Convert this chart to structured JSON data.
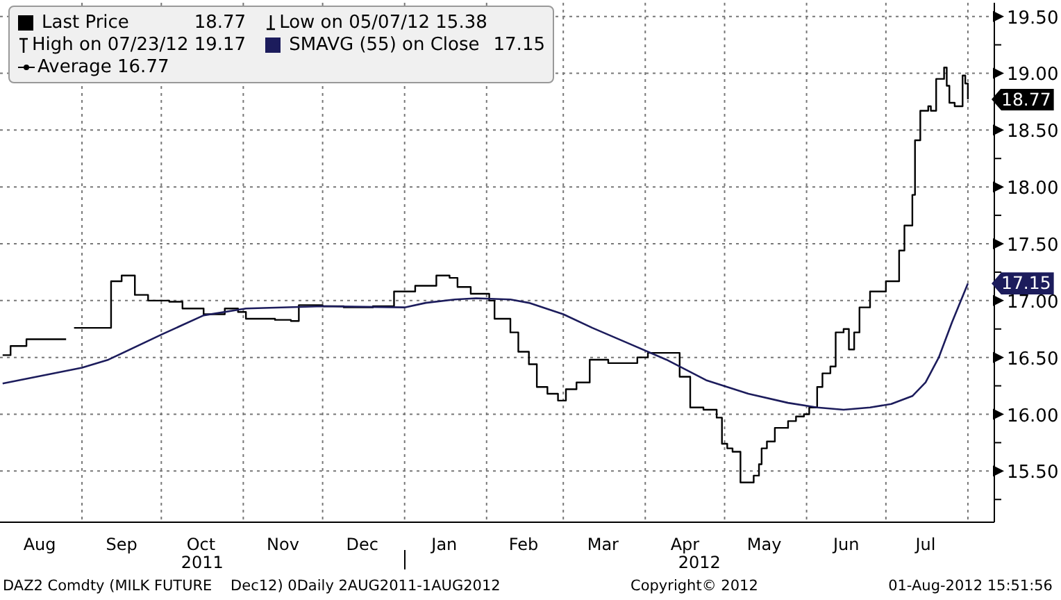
{
  "chart_data": {
    "type": "line",
    "series": [
      {
        "name": "Last Price",
        "type": "step",
        "color": "#000000",
        "x": [
          "2011-08-02",
          "2011-08-05",
          "2011-08-11",
          "2011-08-18",
          "2011-08-26",
          "2011-08-27",
          "2011-08-29",
          "2011-09-07",
          "2011-09-12",
          "2011-09-16",
          "2011-09-21",
          "2011-09-26",
          "2011-10-04",
          "2011-10-09",
          "2011-10-17",
          "2011-10-25",
          "2011-10-30",
          "2011-11-02",
          "2011-11-13",
          "2011-11-19",
          "2011-11-22",
          "2011-12-01",
          "2011-12-09",
          "2011-12-20",
          "2011-12-28",
          "2012-01-05",
          "2012-01-13",
          "2012-01-18",
          "2012-01-21",
          "2012-01-26",
          "2012-02-02",
          "2012-02-04",
          "2012-02-08",
          "2012-02-10",
          "2012-02-13",
          "2012-02-17",
          "2012-02-20",
          "2012-02-24",
          "2012-02-28",
          "2012-03-02",
          "2012-03-06",
          "2012-03-11",
          "2012-03-18",
          "2012-03-23",
          "2012-03-29",
          "2012-04-02",
          "2012-04-14",
          "2012-04-18",
          "2012-04-23",
          "2012-04-28",
          "2012-04-30",
          "2012-05-02",
          "2012-05-04",
          "2012-05-07",
          "2012-05-10",
          "2012-05-12",
          "2012-05-14",
          "2012-05-15",
          "2012-05-17",
          "2012-05-20",
          "2012-05-25",
          "2012-05-28",
          "2012-05-31",
          "2012-06-02",
          "2012-06-05",
          "2012-06-07",
          "2012-06-10",
          "2012-06-12",
          "2012-06-15",
          "2012-06-17",
          "2012-06-19",
          "2012-06-21",
          "2012-06-25",
          "2012-07-01",
          "2012-07-03",
          "2012-07-06",
          "2012-07-08",
          "2012-07-11",
          "2012-07-12",
          "2012-07-14",
          "2012-07-17",
          "2012-07-18",
          "2012-07-20",
          "2012-07-23",
          "2012-07-24",
          "2012-07-25",
          "2012-07-27",
          "2012-07-30",
          "2012-07-31",
          "2012-08-01"
        ],
        "values": [
          16.52,
          16.6,
          16.66,
          16.66,
          16.66,
          null,
          16.76,
          16.76,
          17.17,
          17.22,
          17.05,
          17.0,
          16.99,
          16.93,
          16.88,
          16.93,
          16.9,
          16.84,
          16.83,
          16.82,
          16.96,
          16.95,
          16.94,
          16.95,
          17.08,
          17.13,
          17.22,
          17.2,
          17.12,
          17.06,
          17.0,
          16.84,
          16.84,
          16.72,
          16.55,
          16.44,
          16.24,
          16.18,
          16.12,
          16.22,
          16.28,
          16.48,
          16.45,
          16.45,
          16.5,
          16.54,
          16.33,
          16.06,
          16.04,
          15.97,
          15.74,
          15.7,
          15.67,
          15.4,
          15.4,
          15.46,
          15.56,
          15.7,
          15.76,
          15.88,
          15.94,
          15.98,
          16.0,
          16.06,
          16.24,
          16.36,
          16.42,
          16.72,
          16.75,
          16.57,
          16.72,
          16.94,
          17.08,
          17.17,
          17.17,
          17.44,
          17.66,
          17.93,
          18.41,
          18.67,
          18.71,
          18.67,
          18.95,
          19.05,
          18.89,
          18.74,
          18.71,
          18.98,
          18.91,
          18.77
        ]
      },
      {
        "name": "SMAVG (55) on Close",
        "type": "line",
        "color": "#1c1c5c",
        "x": [
          "2011-08-02",
          "2011-09-01",
          "2011-09-11",
          "2011-10-01",
          "2011-10-17",
          "2011-11-02",
          "2011-12-01",
          "2012-01-01",
          "2012-01-09",
          "2012-01-20",
          "2012-01-28",
          "2012-02-10",
          "2012-02-17",
          "2012-03-01",
          "2012-03-12",
          "2012-03-25",
          "2012-04-09",
          "2012-04-24",
          "2012-05-10",
          "2012-05-25",
          "2012-06-05",
          "2012-06-15",
          "2012-06-25",
          "2012-07-03",
          "2012-07-11",
          "2012-07-16",
          "2012-07-21",
          "2012-07-26",
          "2012-08-01"
        ],
        "values": [
          16.27,
          16.41,
          16.48,
          16.7,
          16.87,
          16.93,
          16.95,
          16.94,
          16.98,
          17.01,
          17.02,
          17.01,
          16.98,
          16.88,
          16.76,
          16.63,
          16.48,
          16.3,
          16.18,
          16.1,
          16.06,
          16.04,
          16.06,
          16.09,
          16.16,
          16.28,
          16.5,
          16.81,
          17.15
        ]
      }
    ],
    "xlim": [
      "2011-08-01",
      "2012-08-11"
    ],
    "xticks": [
      {
        "value": "2011-08-16",
        "label": "Aug"
      },
      {
        "value": "2011-09-01",
        "label": null
      },
      {
        "value": "2011-09-16",
        "label": "Sep"
      },
      {
        "value": "2011-10-01",
        "label": null
      },
      {
        "value": "2011-10-16",
        "label": "Oct"
      },
      {
        "value": "2011-11-01",
        "label": null
      },
      {
        "value": "2011-11-16",
        "label": "Nov"
      },
      {
        "value": "2011-12-01",
        "label": null
      },
      {
        "value": "2011-12-16",
        "label": "Dec"
      },
      {
        "value": "2012-01-01",
        "label": null
      },
      {
        "value": "2012-01-16",
        "label": "Jan"
      },
      {
        "value": "2012-02-01",
        "label": null
      },
      {
        "value": "2012-02-15",
        "label": "Feb"
      },
      {
        "value": "2012-03-01",
        "label": null
      },
      {
        "value": "2012-03-16",
        "label": "Mar"
      },
      {
        "value": "2012-04-01",
        "label": null
      },
      {
        "value": "2012-04-16",
        "label": "Apr"
      },
      {
        "value": "2012-05-01",
        "label": null
      },
      {
        "value": "2012-05-16",
        "label": "May"
      },
      {
        "value": "2012-06-01",
        "label": null
      },
      {
        "value": "2012-06-16",
        "label": "Jun"
      },
      {
        "value": "2012-07-01",
        "label": null
      },
      {
        "value": "2012-07-16",
        "label": "Jul"
      },
      {
        "value": "2012-08-01",
        "label": null
      }
    ],
    "ylim": [
      15.05,
      19.62
    ],
    "yticks": [
      {
        "value": 15.25,
        "label": null
      },
      {
        "value": 15.5,
        "label": "15.50"
      },
      {
        "value": 15.75,
        "label": null
      },
      {
        "value": 16,
        "label": "16.00"
      },
      {
        "value": 16.25,
        "label": null
      },
      {
        "value": 16.5,
        "label": "16.50"
      },
      {
        "value": 16.75,
        "label": null
      },
      {
        "value": 17,
        "label": "17.00"
      },
      {
        "value": 17.25,
        "label": null
      },
      {
        "value": 17.5,
        "label": "17.50"
      },
      {
        "value": 17.75,
        "label": null
      },
      {
        "value": 18,
        "label": "18.00"
      },
      {
        "value": 18.25,
        "label": null
      },
      {
        "value": 18.5,
        "label": "18.50"
      },
      {
        "value": 18.75,
        "label": null
      },
      {
        "value": 19,
        "label": "19.00"
      },
      {
        "value": 19.25,
        "label": null
      },
      {
        "value": 19.5,
        "label": "19.50"
      }
    ],
    "grid": true,
    "legend": "top left",
    "annotations": [
      {
        "text": "18.77",
        "x": "2012-08-01",
        "y": 18.77
      },
      {
        "text": "17.15",
        "x": "2012-08-01",
        "y": 17.15
      },
      "High on 07/23/12 19.17",
      "Low on 05/07/12 15.38",
      "Average 16.77",
      "2011",
      "2012",
      "DAZ2 Comdty (MILK FUTURE    Dec12) 0Daily 2AUG2011-1AUG2012",
      "Copyright© 2012",
      "01-Aug-2012 15:51:56"
    ]
  }
}
